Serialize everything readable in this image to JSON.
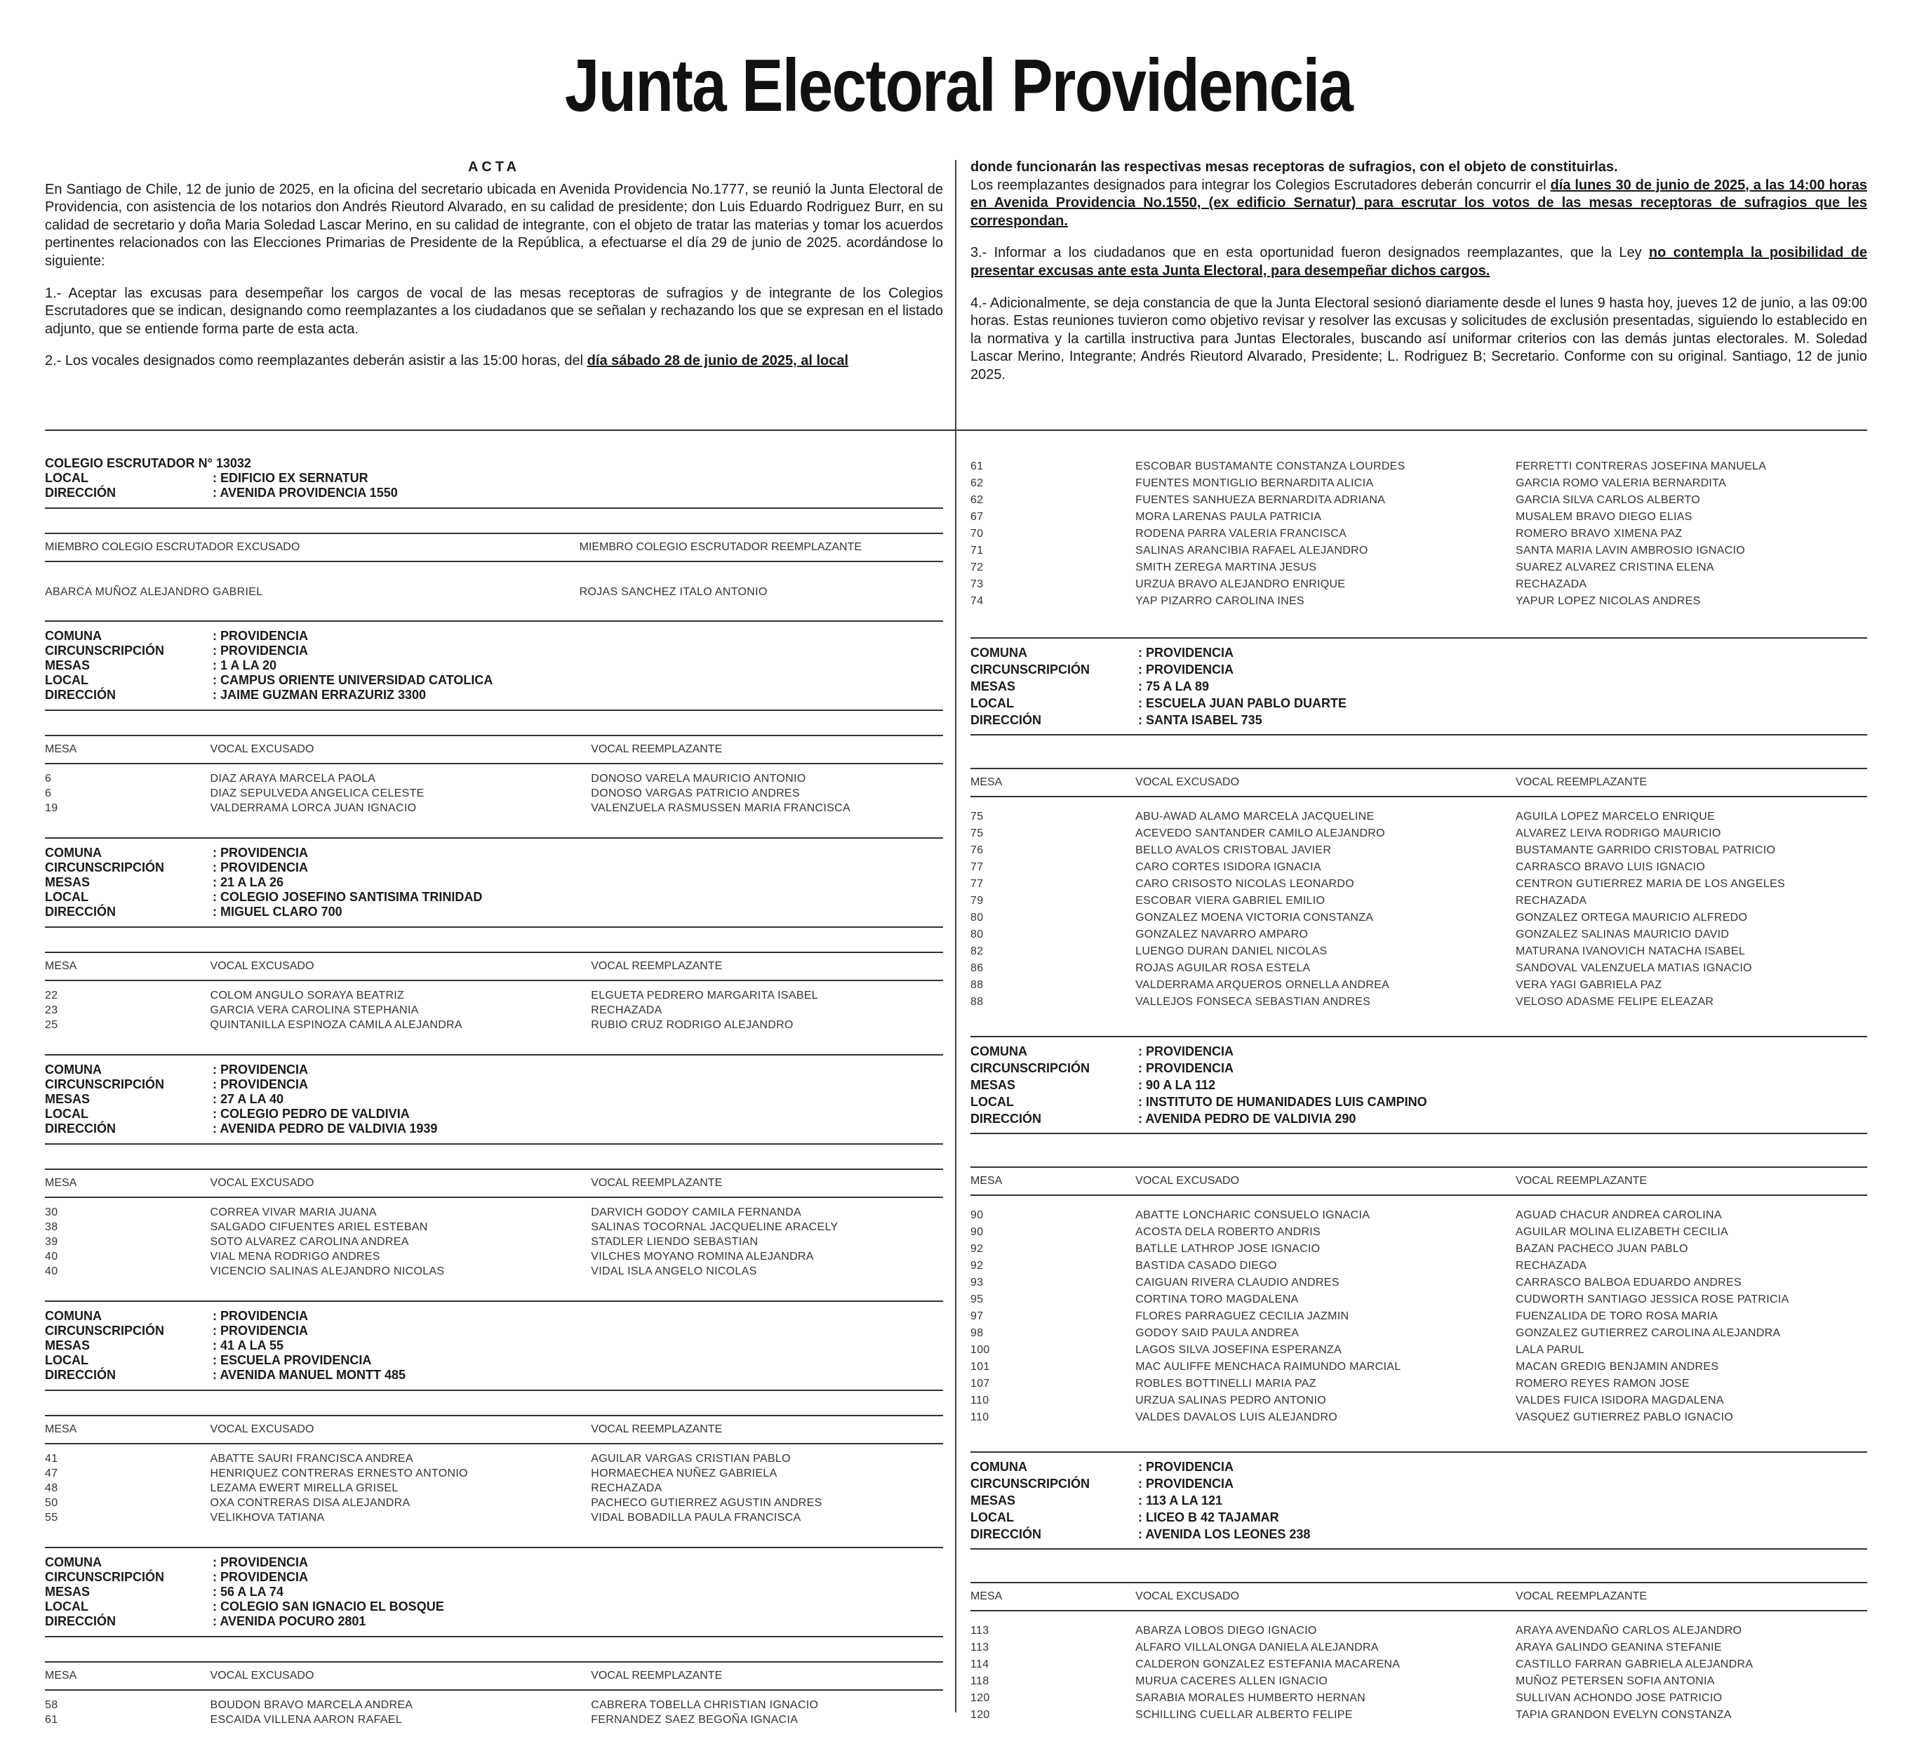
{
  "title": "Junta Electoral Providencia",
  "acta": {
    "heading": "ACTA",
    "left_paragraphs": [
      [
        "En Santiago de Chile, 12 de junio de 2025, en la oficina del secretario ubicada en Avenida Providencia No.1777, se reunió la Junta Electoral de Providencia, con asistencia de los notarios don Andrés Rieutord Alvarado, en su calidad de presidente; don Luis Eduardo Rodriguez Burr, en su calidad de secretario y doña Maria Soledad Lascar Merino, en su calidad de integrante, con el objeto de tratar las materias y tomar los acuerdos pertinentes relacionados con las Elecciones Primarias de Presidente de la República, a efectuarse el día 29 de junio de 2025. acordándose lo siguiente:"
      ],
      [
        "1.- Aceptar las excusas para desempeñar los cargos de vocal de las mesas receptoras de sufragios y de integrante de los Colegios Escrutadores que se indican, designando como reemplazantes a los ciudadanos que se señalan y rechazando los que se expresan en el listado adjunto, que se entiende forma parte de esta acta."
      ],
      [
        "2.- Los vocales designados como reemplazantes deberán asistir a las 15:00 horas, del ",
        {
          "text": "día sábado 28 de junio de 2025, al local",
          "emphasis": "bold-underline"
        }
      ]
    ],
    "right_paragraphs": [
      [
        {
          "text": "donde funcionarán las respectivas mesas receptoras de sufragios, con el objeto de constituirlas.",
          "emphasis": "bold"
        }
      ],
      [
        "Los reemplazantes designados para integrar los Colegios Escrutadores deberán concurrir el ",
        {
          "text": "día lunes 30 de junio de 2025, a las 14:00 horas en Avenida Providencia No.1550, (ex edificio Sernatur) para escrutar los votos de las mesas receptoras de sufragios que les correspondan.",
          "emphasis": "bold-underline"
        }
      ],
      [
        "3.- Informar a los ciudadanos que en esta oportunidad fueron designados reemplazantes, que la Ley ",
        {
          "text": "no contempla la posibilidad de presentar excusas ante esta Junta Electoral, para desempeñar dichos cargos.",
          "emphasis": "bold-underline"
        }
      ],
      [
        "4.- Adicionalmente, se deja constancia de que la Junta Electoral sesionó diariamente desde el lunes 9 hasta hoy, jueves 12 de junio, a las 09:00 horas. Estas reuniones tuvieron como objetivo revisar y resolver las excusas y solicitudes de exclusión presentadas, siguiendo lo establecido en la normativa y la cartilla instructiva para Juntas Electorales, buscando así uniformar criterios con las demás juntas electorales. M. Soledad Lascar Merino, Integrante; Andrés Rieutord Alvarado, Presidente; L. Rodriguez B; Secretario. Conforme con su original. Santiago, 12 de junio 2025."
      ]
    ]
  },
  "left_column": [
    {
      "info": [
        [
          "COLEGIO ESCRUTADOR N° 13032"
        ],
        [
          "LOCAL",
          ": EDIFICIO EX SERNATUR"
        ],
        [
          "DIRECCIÓN",
          ": AVENIDA PROVIDENCIA 1550"
        ]
      ],
      "header": [
        "MIEMBRO COLEGIO ESCRUTADOR EXCUSADO",
        "MIEMBRO COLEGIO ESCRUTADOR REEMPLAZANTE"
      ],
      "rows": [
        [
          "ABARCA MUÑOZ ALEJANDRO GABRIEL",
          "ROJAS SANCHEZ ITALO ANTONIO"
        ]
      ]
    },
    {
      "info": [
        [
          "COMUNA",
          ": PROVIDENCIA"
        ],
        [
          "CIRCUNSCRIPCIÓN",
          ": PROVIDENCIA"
        ],
        [
          "MESAS",
          ": 1 A LA 20"
        ],
        [
          "LOCAL",
          ": CAMPUS ORIENTE UNIVERSIDAD CATOLICA"
        ],
        [
          "DIRECCIÓN",
          ": JAIME GUZMAN ERRAZURIZ 3300"
        ]
      ],
      "header": [
        "MESA",
        "VOCAL EXCUSADO",
        "VOCAL REEMPLAZANTE"
      ],
      "rows": [
        [
          6,
          "DIAZ ARAYA MARCELA PAOLA",
          "DONOSO VARELA MAURICIO ANTONIO"
        ],
        [
          6,
          "DIAZ SEPULVEDA ANGELICA CELESTE",
          "DONOSO VARGAS PATRICIO ANDRES"
        ],
        [
          19,
          "VALDERRAMA LORCA JUAN IGNACIO",
          "VALENZUELA RASMUSSEN MARIA FRANCISCA"
        ]
      ]
    },
    {
      "info": [
        [
          "COMUNA",
          ": PROVIDENCIA"
        ],
        [
          "CIRCUNSCRIPCIÓN",
          ": PROVIDENCIA"
        ],
        [
          "MESAS",
          ": 21 A LA 26"
        ],
        [
          "LOCAL",
          ": COLEGIO JOSEFINO SANTISIMA TRINIDAD"
        ],
        [
          "DIRECCIÓN",
          ": MIGUEL CLARO 700"
        ]
      ],
      "header": [
        "MESA",
        "VOCAL EXCUSADO",
        "VOCAL REEMPLAZANTE"
      ],
      "rows": [
        [
          22,
          "COLOM ANGULO SORAYA BEATRIZ",
          "ELGUETA PEDRERO MARGARITA ISABEL"
        ],
        [
          23,
          "GARCIA VERA CAROLINA STEPHANIA",
          "RECHAZADA"
        ],
        [
          25,
          "QUINTANILLA ESPINOZA CAMILA ALEJANDRA",
          "RUBIO CRUZ RODRIGO ALEJANDRO"
        ]
      ]
    },
    {
      "info": [
        [
          "COMUNA",
          ": PROVIDENCIA"
        ],
        [
          "CIRCUNSCRIPCIÓN",
          ": PROVIDENCIA"
        ],
        [
          "MESAS",
          ": 27 A LA 40"
        ],
        [
          "LOCAL",
          ": COLEGIO PEDRO DE VALDIVIA"
        ],
        [
          "DIRECCIÓN",
          ": AVENIDA PEDRO DE VALDIVIA 1939"
        ]
      ],
      "header": [
        "MESA",
        "VOCAL EXCUSADO",
        "VOCAL REEMPLAZANTE"
      ],
      "rows": [
        [
          30,
          "CORREA VIVAR MARIA JUANA",
          "DARVICH GODOY CAMILA FERNANDA"
        ],
        [
          38,
          "SALGADO CIFUENTES ARIEL ESTEBAN",
          "SALINAS TOCORNAL JACQUELINE ARACELY"
        ],
        [
          39,
          "SOTO ALVAREZ CAROLINA ANDREA",
          "STADLER LIENDO SEBASTIAN"
        ],
        [
          40,
          "VIAL MENA RODRIGO ANDRES",
          "VILCHES MOYANO ROMINA ALEJANDRA"
        ],
        [
          40,
          "VICENCIO SALINAS ALEJANDRO NICOLAS",
          "VIDAL ISLA ANGELO NICOLAS"
        ]
      ]
    },
    {
      "info": [
        [
          "COMUNA",
          ": PROVIDENCIA"
        ],
        [
          "CIRCUNSCRIPCIÓN",
          ": PROVIDENCIA"
        ],
        [
          "MESAS",
          ": 41 A LA 55"
        ],
        [
          "LOCAL",
          ": ESCUELA PROVIDENCIA"
        ],
        [
          "DIRECCIÓN",
          ": AVENIDA MANUEL MONTT 485"
        ]
      ],
      "header": [
        "MESA",
        "VOCAL EXCUSADO",
        "VOCAL REEMPLAZANTE"
      ],
      "rows": [
        [
          41,
          "ABATTE SAURI FRANCISCA ANDREA",
          "AGUILAR VARGAS CRISTIAN PABLO"
        ],
        [
          47,
          "HENRIQUEZ CONTRERAS ERNESTO ANTONIO",
          "HORMAECHEA NUÑEZ GABRIELA"
        ],
        [
          48,
          "LEZAMA EWERT MIRELLA GRISEL",
          "RECHAZADA"
        ],
        [
          50,
          "OXA CONTRERAS DISA ALEJANDRA",
          "PACHECO GUTIERREZ AGUSTIN ANDRES"
        ],
        [
          55,
          "VELIKHOVA TATIANA",
          "VIDAL BOBADILLA PAULA FRANCISCA"
        ]
      ]
    },
    {
      "info": [
        [
          "COMUNA",
          ": PROVIDENCIA"
        ],
        [
          "CIRCUNSCRIPCIÓN",
          ": PROVIDENCIA"
        ],
        [
          "MESAS",
          ": 56 A LA 74"
        ],
        [
          "LOCAL",
          ": COLEGIO SAN IGNACIO EL BOSQUE"
        ],
        [
          "DIRECCIÓN",
          ": AVENIDA POCURO 2801"
        ]
      ],
      "header": [
        "MESA",
        "VOCAL EXCUSADO",
        "VOCAL REEMPLAZANTE"
      ],
      "rows": [
        [
          58,
          "BOUDON BRAVO MARCELA ANDREA",
          "CABRERA TOBELLA CHRISTIAN IGNACIO"
        ],
        [
          61,
          "ESCAIDA VILLENA AARON RAFAEL",
          "FERNANDEZ SAEZ BEGOÑA IGNACIA"
        ]
      ]
    }
  ],
  "right_column": [
    {
      "rows": [
        [
          61,
          "ESCOBAR BUSTAMANTE CONSTANZA LOURDES",
          "FERRETTI CONTRERAS JOSEFINA MANUELA"
        ],
        [
          62,
          "FUENTES MONTIGLIO BERNARDITA ALICIA",
          "GARCIA ROMO VALERIA BERNARDITA"
        ],
        [
          62,
          "FUENTES SANHUEZA BERNARDITA ADRIANA",
          "GARCIA SILVA CARLOS ALBERTO"
        ],
        [
          67,
          "MORA LARENAS PAULA PATRICIA",
          "MUSALEM BRAVO DIEGO ELIAS"
        ],
        [
          70,
          "RODENA PARRA VALERIA FRANCISCA",
          "ROMERO BRAVO XIMENA PAZ"
        ],
        [
          71,
          "SALINAS ARANCIBIA RAFAEL ALEJANDRO",
          "SANTA MARIA LAVIN AMBROSIO IGNACIO"
        ],
        [
          72,
          "SMITH ZEREGA MARTINA JESUS",
          "SUAREZ ALVAREZ CRISTINA ELENA"
        ],
        [
          73,
          "URZUA BRAVO ALEJANDRO ENRIQUE",
          "RECHAZADA"
        ],
        [
          74,
          "YAP PIZARRO CAROLINA INES",
          "YAPUR LOPEZ NICOLAS ANDRES"
        ]
      ]
    },
    {
      "info": [
        [
          "COMUNA",
          ": PROVIDENCIA"
        ],
        [
          "CIRCUNSCRIPCIÓN",
          ": PROVIDENCIA"
        ],
        [
          "MESAS",
          ": 75 A LA 89"
        ],
        [
          "LOCAL",
          ": ESCUELA JUAN PABLO DUARTE"
        ],
        [
          "DIRECCIÓN",
          ": SANTA ISABEL 735"
        ]
      ],
      "header": [
        "MESA",
        "VOCAL EXCUSADO",
        "VOCAL REEMPLAZANTE"
      ],
      "rows": [
        [
          75,
          "ABU-AWAD ALAMO MARCELA JACQUELINE",
          "AGUILA LOPEZ MARCELO ENRIQUE"
        ],
        [
          75,
          "ACEVEDO SANTANDER CAMILO ALEJANDRO",
          "ALVAREZ LEIVA RODRIGO MAURICIO"
        ],
        [
          76,
          "BELLO AVALOS CRISTOBAL JAVIER",
          "BUSTAMANTE GARRIDO CRISTOBAL PATRICIO"
        ],
        [
          77,
          "CARO CORTES ISIDORA IGNACIA",
          "CARRASCO BRAVO LUIS IGNACIO"
        ],
        [
          77,
          "CARO CRISOSTO NICOLAS LEONARDO",
          "CENTRON GUTIERREZ MARIA DE LOS ANGELES"
        ],
        [
          79,
          "ESCOBAR VIERA GABRIEL EMILIO",
          "RECHAZADA"
        ],
        [
          80,
          "GONZALEZ MOENA VICTORIA CONSTANZA",
          "GONZALEZ ORTEGA MAURICIO ALFREDO"
        ],
        [
          80,
          "GONZALEZ NAVARRO AMPARO",
          "GONZALEZ SALINAS MAURICIO DAVID"
        ],
        [
          82,
          "LUENGO DURAN DANIEL NICOLAS",
          "MATURANA IVANOVICH NATACHA ISABEL"
        ],
        [
          86,
          "ROJAS AGUILAR ROSA ESTELA",
          "SANDOVAL VALENZUELA MATIAS IGNACIO"
        ],
        [
          88,
          "VALDERRAMA ARQUEROS ORNELLA ANDREA",
          "VERA YAGI GABRIELA PAZ"
        ],
        [
          88,
          "VALLEJOS FONSECA SEBASTIAN ANDRES",
          "VELOSO ADASME FELIPE ELEAZAR"
        ]
      ]
    },
    {
      "info": [
        [
          "COMUNA",
          ": PROVIDENCIA"
        ],
        [
          "CIRCUNSCRIPCIÓN",
          ": PROVIDENCIA"
        ],
        [
          "MESAS",
          ": 90 A LA 112"
        ],
        [
          "LOCAL",
          ": INSTITUTO DE HUMANIDADES LUIS CAMPINO"
        ],
        [
          "DIRECCIÓN",
          ": AVENIDA PEDRO DE VALDIVIA 290"
        ]
      ],
      "header": [
        "MESA",
        "VOCAL EXCUSADO",
        "VOCAL REEMPLAZANTE"
      ],
      "rows": [
        [
          90,
          "ABATTE LONCHARIC CONSUELO IGNACIA",
          "AGUAD CHACUR ANDREA CAROLINA"
        ],
        [
          90,
          "ACOSTA DELA ROBERTO ANDRIS",
          "AGUILAR MOLINA ELIZABETH CECILIA"
        ],
        [
          92,
          "BATLLE LATHROP JOSE IGNACIO",
          "BAZAN PACHECO JUAN PABLO"
        ],
        [
          92,
          "BASTIDA CASADO DIEGO",
          "RECHAZADA"
        ],
        [
          93,
          "CAIGUAN RIVERA CLAUDIO ANDRES",
          "CARRASCO BALBOA EDUARDO ANDRES"
        ],
        [
          95,
          "CORTINA TORO MAGDALENA",
          "CUDWORTH SANTIAGO JESSICA ROSE PATRICIA"
        ],
        [
          97,
          "FLORES PARRAGUEZ CECILIA JAZMIN",
          "FUENZALIDA DE TORO ROSA MARIA"
        ],
        [
          98,
          "GODOY SAID PAULA ANDREA",
          "GONZALEZ GUTIERREZ CAROLINA ALEJANDRA"
        ],
        [
          100,
          "LAGOS SILVA JOSEFINA ESPERANZA",
          "LALA PARUL"
        ],
        [
          101,
          "MAC AULIFFE MENCHACA RAIMUNDO MARCIAL",
          "MACAN GREDIG BENJAMIN ANDRES"
        ],
        [
          107,
          "ROBLES BOTTINELLI MARIA PAZ",
          "ROMERO REYES RAMON JOSE"
        ],
        [
          110,
          "URZUA SALINAS PEDRO ANTONIO",
          "VALDES FUICA ISIDORA MAGDALENA"
        ],
        [
          110,
          "VALDES DAVALOS LUIS ALEJANDRO",
          "VASQUEZ GUTIERREZ PABLO IGNACIO"
        ]
      ]
    },
    {
      "info": [
        [
          "COMUNA",
          ": PROVIDENCIA"
        ],
        [
          "CIRCUNSCRIPCIÓN",
          ": PROVIDENCIA"
        ],
        [
          "MESAS",
          ": 113 A LA 121"
        ],
        [
          "LOCAL",
          ": LICEO B 42 TAJAMAR"
        ],
        [
          "DIRECCIÓN",
          ": AVENIDA LOS LEONES 238"
        ]
      ],
      "header": [
        "MESA",
        "VOCAL EXCUSADO",
        "VOCAL REEMPLAZANTE"
      ],
      "rows": [
        [
          113,
          "ABARZA LOBOS DIEGO IGNACIO",
          "ARAYA AVENDAÑO CARLOS ALEJANDRO"
        ],
        [
          113,
          "ALFARO VILLALONGA DANIELA ALEJANDRA",
          "ARAYA GALINDO GEANINA STEFANIE"
        ],
        [
          114,
          "CALDERON GONZALEZ ESTEFANIA MACARENA",
          "CASTILLO FARRAN GABRIELA ALEJANDRA"
        ],
        [
          118,
          "MURUA CACERES ALLEN IGNACIO",
          "MUÑOZ PETERSEN SOFIA ANTONIA"
        ],
        [
          120,
          "SARABIA MORALES HUMBERTO HERNAN",
          "SULLIVAN ACHONDO JOSE PATRICIO"
        ],
        [
          120,
          "SCHILLING CUELLAR ALBERTO FELIPE",
          "TAPIA GRANDON EVELYN CONSTANZA"
        ]
      ]
    }
  ]
}
